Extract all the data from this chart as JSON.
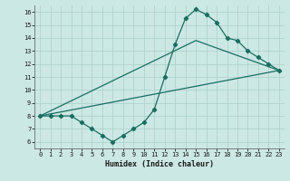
{
  "title": "",
  "xlabel": "Humidex (Indice chaleur)",
  "ylabel": "",
  "background_color": "#cce8e4",
  "grid_color": "#aacfca",
  "line_color": "#1a6e60",
  "xlim": [
    -0.5,
    23.5
  ],
  "ylim": [
    5.5,
    16.5
  ],
  "xticks": [
    0,
    1,
    2,
    3,
    4,
    5,
    6,
    7,
    8,
    9,
    10,
    11,
    12,
    13,
    14,
    15,
    16,
    17,
    18,
    19,
    20,
    21,
    22,
    23
  ],
  "yticks": [
    6,
    7,
    8,
    9,
    10,
    11,
    12,
    13,
    14,
    15,
    16
  ],
  "series1_x": [
    0,
    1,
    2,
    3,
    4,
    5,
    6,
    7,
    8,
    9,
    10,
    11,
    12,
    13,
    14,
    15,
    16,
    17,
    18,
    19,
    20,
    21,
    22,
    23
  ],
  "series1_y": [
    8.0,
    8.0,
    8.0,
    8.0,
    7.5,
    7.0,
    6.5,
    6.0,
    6.5,
    7.0,
    7.5,
    8.5,
    11.0,
    13.5,
    15.5,
    16.2,
    15.8,
    15.2,
    14.0,
    13.8,
    13.0,
    12.5,
    12.0,
    11.5
  ],
  "series2_x": [
    0,
    23
  ],
  "series2_y": [
    8.0,
    11.5
  ],
  "series3_x": [
    0,
    15,
    23
  ],
  "series3_y": [
    8.0,
    13.8,
    11.5
  ]
}
